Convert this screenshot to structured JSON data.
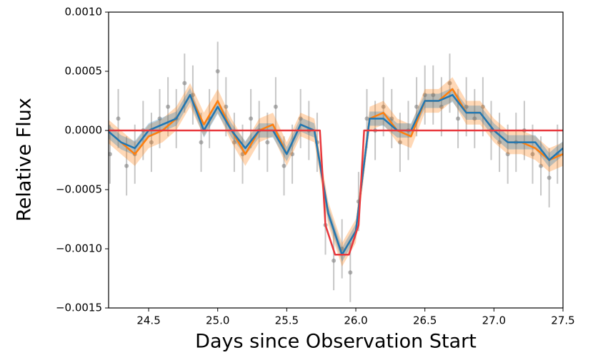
{
  "chart_data": {
    "type": "line",
    "xlabel": "Days since Observation Start",
    "ylabel": "Relative Flux",
    "xlim": [
      24.21,
      27.5
    ],
    "ylim": [
      -0.0015,
      0.001
    ],
    "xticks": [
      24.5,
      {
        "value": 25.0,
        "label": "25.0"
      },
      25.5,
      {
        "value": 26.0,
        "label": "26.0"
      },
      26.5,
      {
        "value": 27.0,
        "label": "27.0"
      },
      27.5
    ],
    "yticks": [
      {
        "value": 0.001,
        "label": "0.0010"
      },
      {
        "value": 0.0005,
        "label": "0.0005"
      },
      {
        "value": 0,
        "label": "0.0000"
      },
      {
        "value": -0.0005,
        "label": "−0.0005"
      },
      {
        "value": -0.001,
        "label": "−0.0010"
      },
      {
        "value": -0.0015,
        "label": "−0.0015"
      }
    ],
    "points": {
      "color": "#808080",
      "error": 0.00025,
      "x": [
        24.22,
        24.28,
        24.34,
        24.4,
        24.46,
        24.52,
        24.58,
        24.64,
        24.7,
        24.76,
        24.82,
        24.88,
        24.94,
        25.0,
        25.06,
        25.12,
        25.18,
        25.24,
        25.3,
        25.36,
        25.42,
        25.48,
        25.54,
        25.6,
        25.66,
        25.72,
        25.78,
        25.84,
        25.9,
        25.96,
        26.02,
        26.08,
        26.14,
        26.2,
        26.26,
        26.32,
        26.38,
        26.44,
        26.5,
        26.56,
        26.62,
        26.68,
        26.74,
        26.8,
        26.86,
        26.92,
        26.98,
        27.04,
        27.1,
        27.16,
        27.22,
        27.28,
        27.34,
        27.4,
        27.46
      ],
      "values": [
        -0.0002,
        0.0001,
        -0.0003,
        -0.0002,
        0,
        -0.0001,
        0.0001,
        0.0002,
        0.0001,
        0.0004,
        0.0003,
        -0.0001,
        0.0001,
        0.0005,
        0.0002,
        -0.0001,
        -0.0002,
        0.0001,
        0,
        -0.0001,
        0.0002,
        -0.0003,
        -0.0002,
        0.0001,
        0,
        -0.0001,
        -0.0008,
        -0.0011,
        -0.001,
        -0.0012,
        -0.0006,
        0.0001,
        0,
        0.0002,
        0.0001,
        -0.0001,
        0,
        0.0002,
        0.0003,
        0.0003,
        0.0002,
        0.0004,
        0.0001,
        0.0002,
        0.0001,
        0.0002,
        0,
        -0.0001,
        -0.0002,
        -0.0001,
        0,
        -0.0002,
        -0.0003,
        -0.0004,
        -0.0002
      ]
    },
    "x": [
      24.2,
      24.3,
      24.4,
      24.5,
      24.6,
      24.7,
      24.8,
      24.9,
      25.0,
      25.1,
      25.2,
      25.3,
      25.4,
      25.5,
      25.6,
      25.7,
      25.8,
      25.9,
      26.0,
      26.1,
      26.2,
      26.3,
      26.4,
      26.5,
      26.6,
      26.7,
      26.8,
      26.9,
      27.0,
      27.1,
      27.2,
      27.3,
      27.4,
      27.5
    ],
    "series": [
      {
        "color": "#ff7f0e",
        "band": 0.0001,
        "values": [
          0,
          -0.0001,
          -0.0002,
          -5e-05,
          0,
          0.0001,
          0.0003,
          5e-05,
          0.00025,
          0,
          -0.0002,
          0,
          5e-05,
          -0.0002,
          5e-05,
          0,
          -0.0007,
          -0.00105,
          -0.00085,
          0.0001,
          0.00015,
          0,
          -5e-05,
          0.00025,
          0.00025,
          0.00035,
          0.00015,
          0.00015,
          0,
          -0.0001,
          -0.0001,
          -0.00015,
          -0.00025,
          -0.0002
        ]
      },
      {
        "color": "#1f77b4",
        "band": 6e-05,
        "values": [
          0,
          -0.0001,
          -0.00015,
          0,
          5e-05,
          0.0001,
          0.0003,
          0,
          0.0002,
          0,
          -0.00015,
          0,
          0,
          -0.0002,
          5e-05,
          0,
          -0.0007,
          -0.00105,
          -0.00085,
          0.0001,
          0.0001,
          0,
          0,
          0.00025,
          0.00025,
          0.0003,
          0.00015,
          0.00015,
          0,
          -0.0001,
          -0.0001,
          -0.0001,
          -0.00025,
          -0.00015
        ]
      },
      {
        "color": "#e8383d",
        "x": [
          24.21,
          25.74,
          25.78,
          25.85,
          25.95,
          26.02,
          26.06,
          27.5
        ],
        "values": [
          0,
          0,
          -0.0008,
          -0.00105,
          -0.00105,
          -0.0008,
          0,
          0
        ]
      }
    ]
  }
}
